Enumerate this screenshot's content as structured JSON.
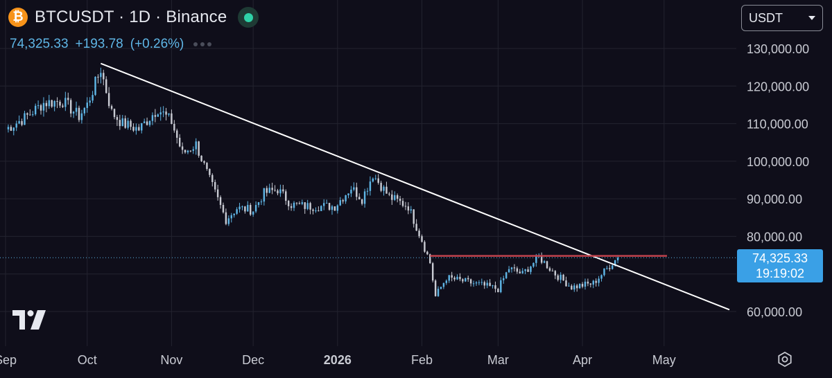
{
  "header": {
    "title": "BTCUSDT · 1D · Binance",
    "coin_icon": "bitcoin-icon",
    "status_color": "#2fd1a7"
  },
  "quote": {
    "price": "74,325.33",
    "change": "+193.78",
    "change_pct": "(+0.26%)"
  },
  "currency_select": {
    "value": "USDT"
  },
  "price_tag": {
    "price": "74,325.33",
    "countdown": "19:19:02"
  },
  "chart_data": {
    "type": "candlestick",
    "y_scale": "linear",
    "ylim": [
      58000,
      133000
    ],
    "y_ticks": [
      60000,
      70000,
      80000,
      90000,
      100000,
      110000,
      120000,
      130000
    ],
    "y_tick_labels": [
      "60,000.00",
      "70,000.00",
      "80,000.00",
      "90,000.00",
      "100,000.00",
      "110,000.00",
      "120,000.00",
      "130,000.00"
    ],
    "x_range": [
      "2025-09-01",
      "2026-05-25"
    ],
    "x_ticks": [
      "2025-09-01",
      "2025-10-01",
      "2025-11-01",
      "2025-12-01",
      "2026-01-01",
      "2026-02-01",
      "2026-03-01",
      "2026-04-01",
      "2026-05-01"
    ],
    "x_tick_labels": [
      "Sep",
      "Oct",
      "Nov",
      "Dec",
      "2026",
      "Feb",
      "Mar",
      "Apr",
      "May"
    ],
    "close_path": [
      [
        "2025-09-01",
        108500
      ],
      [
        "2025-09-08",
        111500
      ],
      [
        "2025-09-15",
        115500
      ],
      [
        "2025-09-22",
        116000
      ],
      [
        "2025-09-28",
        112000
      ],
      [
        "2025-10-01",
        115000
      ],
      [
        "2025-10-06",
        124500
      ],
      [
        "2025-10-10",
        113000
      ],
      [
        "2025-10-14",
        110000
      ],
      [
        "2025-10-20",
        108500
      ],
      [
        "2025-10-27",
        114000
      ],
      [
        "2025-11-01",
        110500
      ],
      [
        "2025-11-05",
        102000
      ],
      [
        "2025-11-10",
        104500
      ],
      [
        "2025-11-15",
        95000
      ],
      [
        "2025-11-21",
        84500
      ],
      [
        "2025-11-25",
        87500
      ],
      [
        "2025-12-01",
        87000
      ],
      [
        "2025-12-05",
        91500
      ],
      [
        "2025-12-10",
        92500
      ],
      [
        "2025-12-15",
        88500
      ],
      [
        "2025-12-20",
        88000
      ],
      [
        "2025-12-31",
        88000
      ],
      [
        "2026-01-06",
        93000
      ],
      [
        "2026-01-10",
        90000
      ],
      [
        "2026-01-14",
        96500
      ],
      [
        "2026-01-20",
        90500
      ],
      [
        "2026-01-27",
        88000
      ],
      [
        "2026-02-01",
        79000
      ],
      [
        "2026-02-04",
        73000
      ],
      [
        "2026-02-06",
        64000
      ],
      [
        "2026-02-10",
        69000
      ],
      [
        "2026-02-20",
        67500
      ],
      [
        "2026-03-01",
        66000
      ],
      [
        "2026-03-05",
        71500
      ],
      [
        "2026-03-10",
        70000
      ],
      [
        "2026-03-16",
        74500
      ],
      [
        "2026-03-22",
        70000
      ],
      [
        "2026-03-28",
        66500
      ],
      [
        "2026-04-05",
        67500
      ],
      [
        "2026-04-12",
        73000
      ],
      [
        "2026-04-14",
        74325.33
      ]
    ],
    "trendline": [
      [
        "2025-10-06",
        126000
      ],
      [
        "2026-05-25",
        60500
      ]
    ],
    "resistance_line": {
      "y": 74800,
      "from": "2026-02-04",
      "to": "2026-05-01"
    },
    "last_price": 74325.33,
    "colors": {
      "up": "#5fb6e6",
      "down": "#c9cbd3",
      "trendline": "#ffffff",
      "resistance": "#c0434d",
      "grid": "#23232f",
      "background": "#0f0e1a"
    }
  }
}
